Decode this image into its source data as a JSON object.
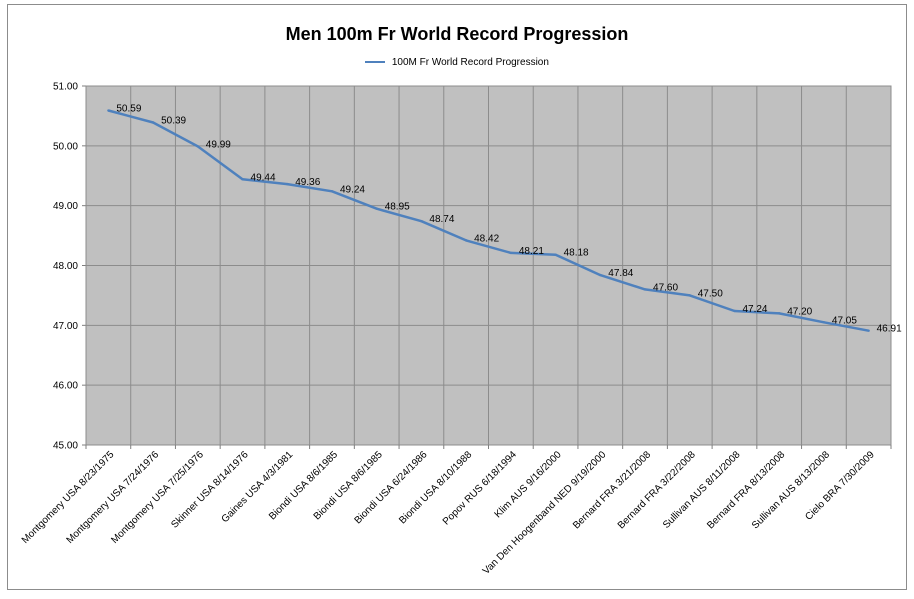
{
  "chart_data": {
    "type": "line",
    "title": "Men 100m Fr World Record Progression",
    "legend": [
      "100M Fr World Record Progression"
    ],
    "xlabel": "",
    "ylabel": "",
    "ylim": [
      45.0,
      51.0
    ],
    "yticks": [
      "45.00",
      "46.00",
      "47.00",
      "48.00",
      "49.00",
      "50.00",
      "51.00"
    ],
    "grid": true,
    "colors": {
      "line": "#4f81bd",
      "plot_bg": "#c0c0c0",
      "grid": "#8c8c8c"
    },
    "categories": [
      "Montgomery USA 8/23/1975",
      "Montgomery USA 7/24/1976",
      "Montgomery USA 7/25/1976",
      "Skinner USA 8/14/1976",
      "Gaines USA 4/3/1981",
      "Biondi USA 8/6/1985",
      "Biondi USA 8/6/1985",
      "Biondi USA 6/24/1986",
      "Biondi USA 8/10/1988",
      "Popov RUS 6/18/1994",
      "Klim AUS 9/16/2000",
      "Van Den Hoogenband NED 9/19/2000",
      "Bernard FRA 3/21/2008",
      "Bernard FRA 3/22/2008",
      "Sullivan AUS 8/11/2008",
      "Bernard FRA 8/13/2008",
      "Sullivan AUS 8/13/2008",
      "Cielo BRA 7/30/2009"
    ],
    "series": [
      {
        "name": "100M Fr World Record Progression",
        "values": [
          50.59,
          50.39,
          49.99,
          49.44,
          49.36,
          49.24,
          48.95,
          48.74,
          48.42,
          48.21,
          48.18,
          47.84,
          47.6,
          47.5,
          47.24,
          47.2,
          47.05,
          46.91
        ],
        "labels": [
          "50.59",
          "50.39",
          "49.99",
          "49.44",
          "49.36",
          "49.24",
          "48.95",
          "48.74",
          "48.42",
          "48.21",
          "48.18",
          "47.84",
          "47.60",
          "47.50",
          "47.24",
          "47.20",
          "47.05",
          "46.91"
        ]
      }
    ]
  }
}
